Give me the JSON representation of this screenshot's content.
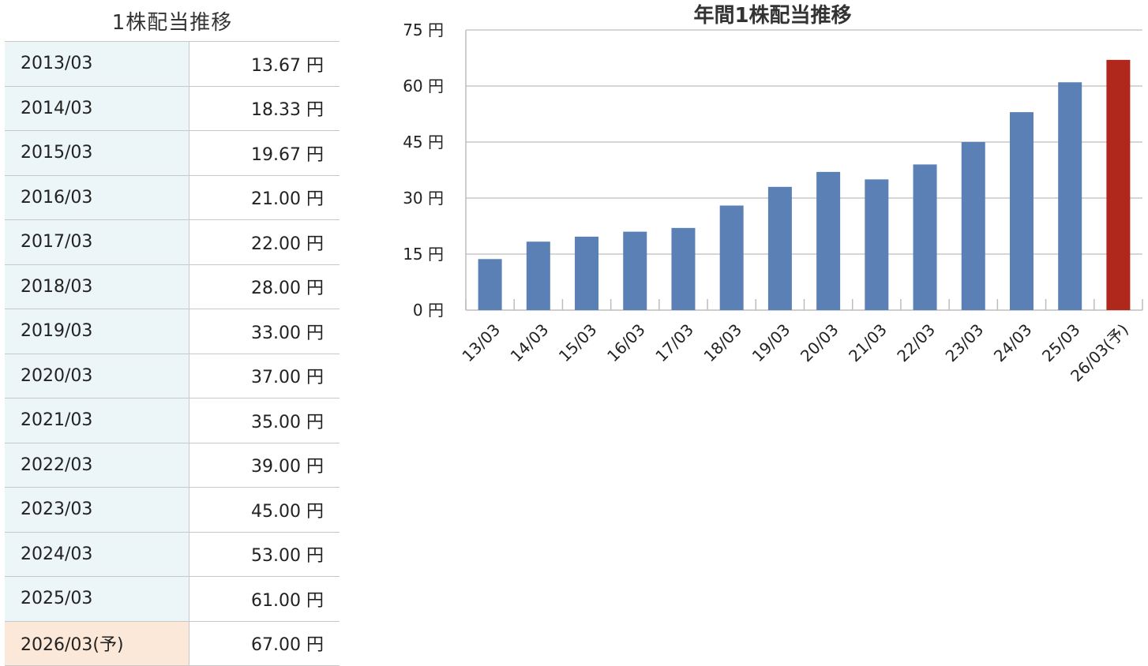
{
  "table": {
    "title": "1株配当推移",
    "rows": [
      {
        "period": "2013/03",
        "amount": "13.67 円"
      },
      {
        "period": "2014/03",
        "amount": "18.33 円"
      },
      {
        "period": "2015/03",
        "amount": "19.67 円"
      },
      {
        "period": "2016/03",
        "amount": "21.00 円"
      },
      {
        "period": "2017/03",
        "amount": "22.00 円"
      },
      {
        "period": "2018/03",
        "amount": "28.00 円"
      },
      {
        "period": "2019/03",
        "amount": "33.00 円"
      },
      {
        "period": "2020/03",
        "amount": "37.00 円"
      },
      {
        "period": "2021/03",
        "amount": "35.00 円"
      },
      {
        "period": "2022/03",
        "amount": "39.00 円"
      },
      {
        "period": "2023/03",
        "amount": "45.00 円"
      },
      {
        "period": "2024/03",
        "amount": "53.00 円"
      },
      {
        "period": "2025/03",
        "amount": "61.00 円"
      },
      {
        "period": "2026/03(予)",
        "amount": "67.00 円",
        "forecast": true
      }
    ]
  },
  "chart_data": {
    "type": "bar",
    "title": "年間1株配当推移",
    "categories": [
      "13/03",
      "14/03",
      "15/03",
      "16/03",
      "17/03",
      "18/03",
      "19/03",
      "20/03",
      "21/03",
      "22/03",
      "23/03",
      "24/03",
      "25/03",
      "26/03(予)"
    ],
    "values": [
      13.67,
      18.33,
      19.67,
      21.0,
      22.0,
      28.0,
      33.0,
      37.0,
      35.0,
      39.0,
      45.0,
      53.0,
      61.0,
      67.0
    ],
    "forecast_index": 13,
    "ylim": [
      0,
      75
    ],
    "yticks": [
      0,
      15,
      30,
      45,
      60,
      75
    ],
    "ytick_labels": [
      "0 円",
      "15 円",
      "30 円",
      "45 円",
      "60 円",
      "75 円"
    ],
    "grid": true,
    "colors": {
      "actual": "#5b80b5",
      "forecast": "#b0271b",
      "grid": "#c8c8c8",
      "axis": "#bdbdbd"
    }
  }
}
